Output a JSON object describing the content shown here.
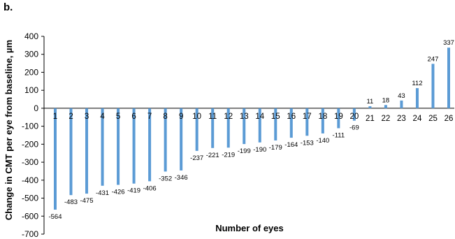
{
  "panel_label": "b.",
  "chart_data": {
    "type": "bar",
    "categories": [
      "1",
      "2",
      "3",
      "4",
      "5",
      "6",
      "7",
      "8",
      "9",
      "10",
      "11",
      "12",
      "13",
      "14",
      "15",
      "16",
      "17",
      "18",
      "19",
      "20",
      "21",
      "22",
      "23",
      "24",
      "25",
      "26"
    ],
    "values": [
      -564,
      -483,
      -475,
      -431,
      -426,
      -419,
      -406,
      -352,
      -346,
      -237,
      -221,
      -219,
      -199,
      -190,
      -179,
      -164,
      -153,
      -140,
      -111,
      -69,
      11,
      18,
      43,
      112,
      247,
      337
    ],
    "data_labels": [
      "-564",
      "-483",
      "-475",
      "-431",
      "-426",
      "-419",
      "-406",
      "-352",
      "-346",
      "-237",
      "-221",
      "-219",
      "-199",
      "-190",
      "-179",
      "-164",
      "-153",
      "-140",
      "-111",
      "-69",
      "11",
      "18",
      "43",
      "112",
      "247",
      "337"
    ],
    "xlabel": "Number of eyes",
    "ylabel": "Change in CMT per eye from baseline, µm",
    "ylim": [
      -700,
      400
    ],
    "yticks": [
      "400",
      "300",
      "200",
      "100",
      "0",
      "-100",
      "-200",
      "-300",
      "-400",
      "-500",
      "-600",
      "-700"
    ],
    "bar_color": "#5b9bd5",
    "grid": false,
    "legend": "none"
  }
}
